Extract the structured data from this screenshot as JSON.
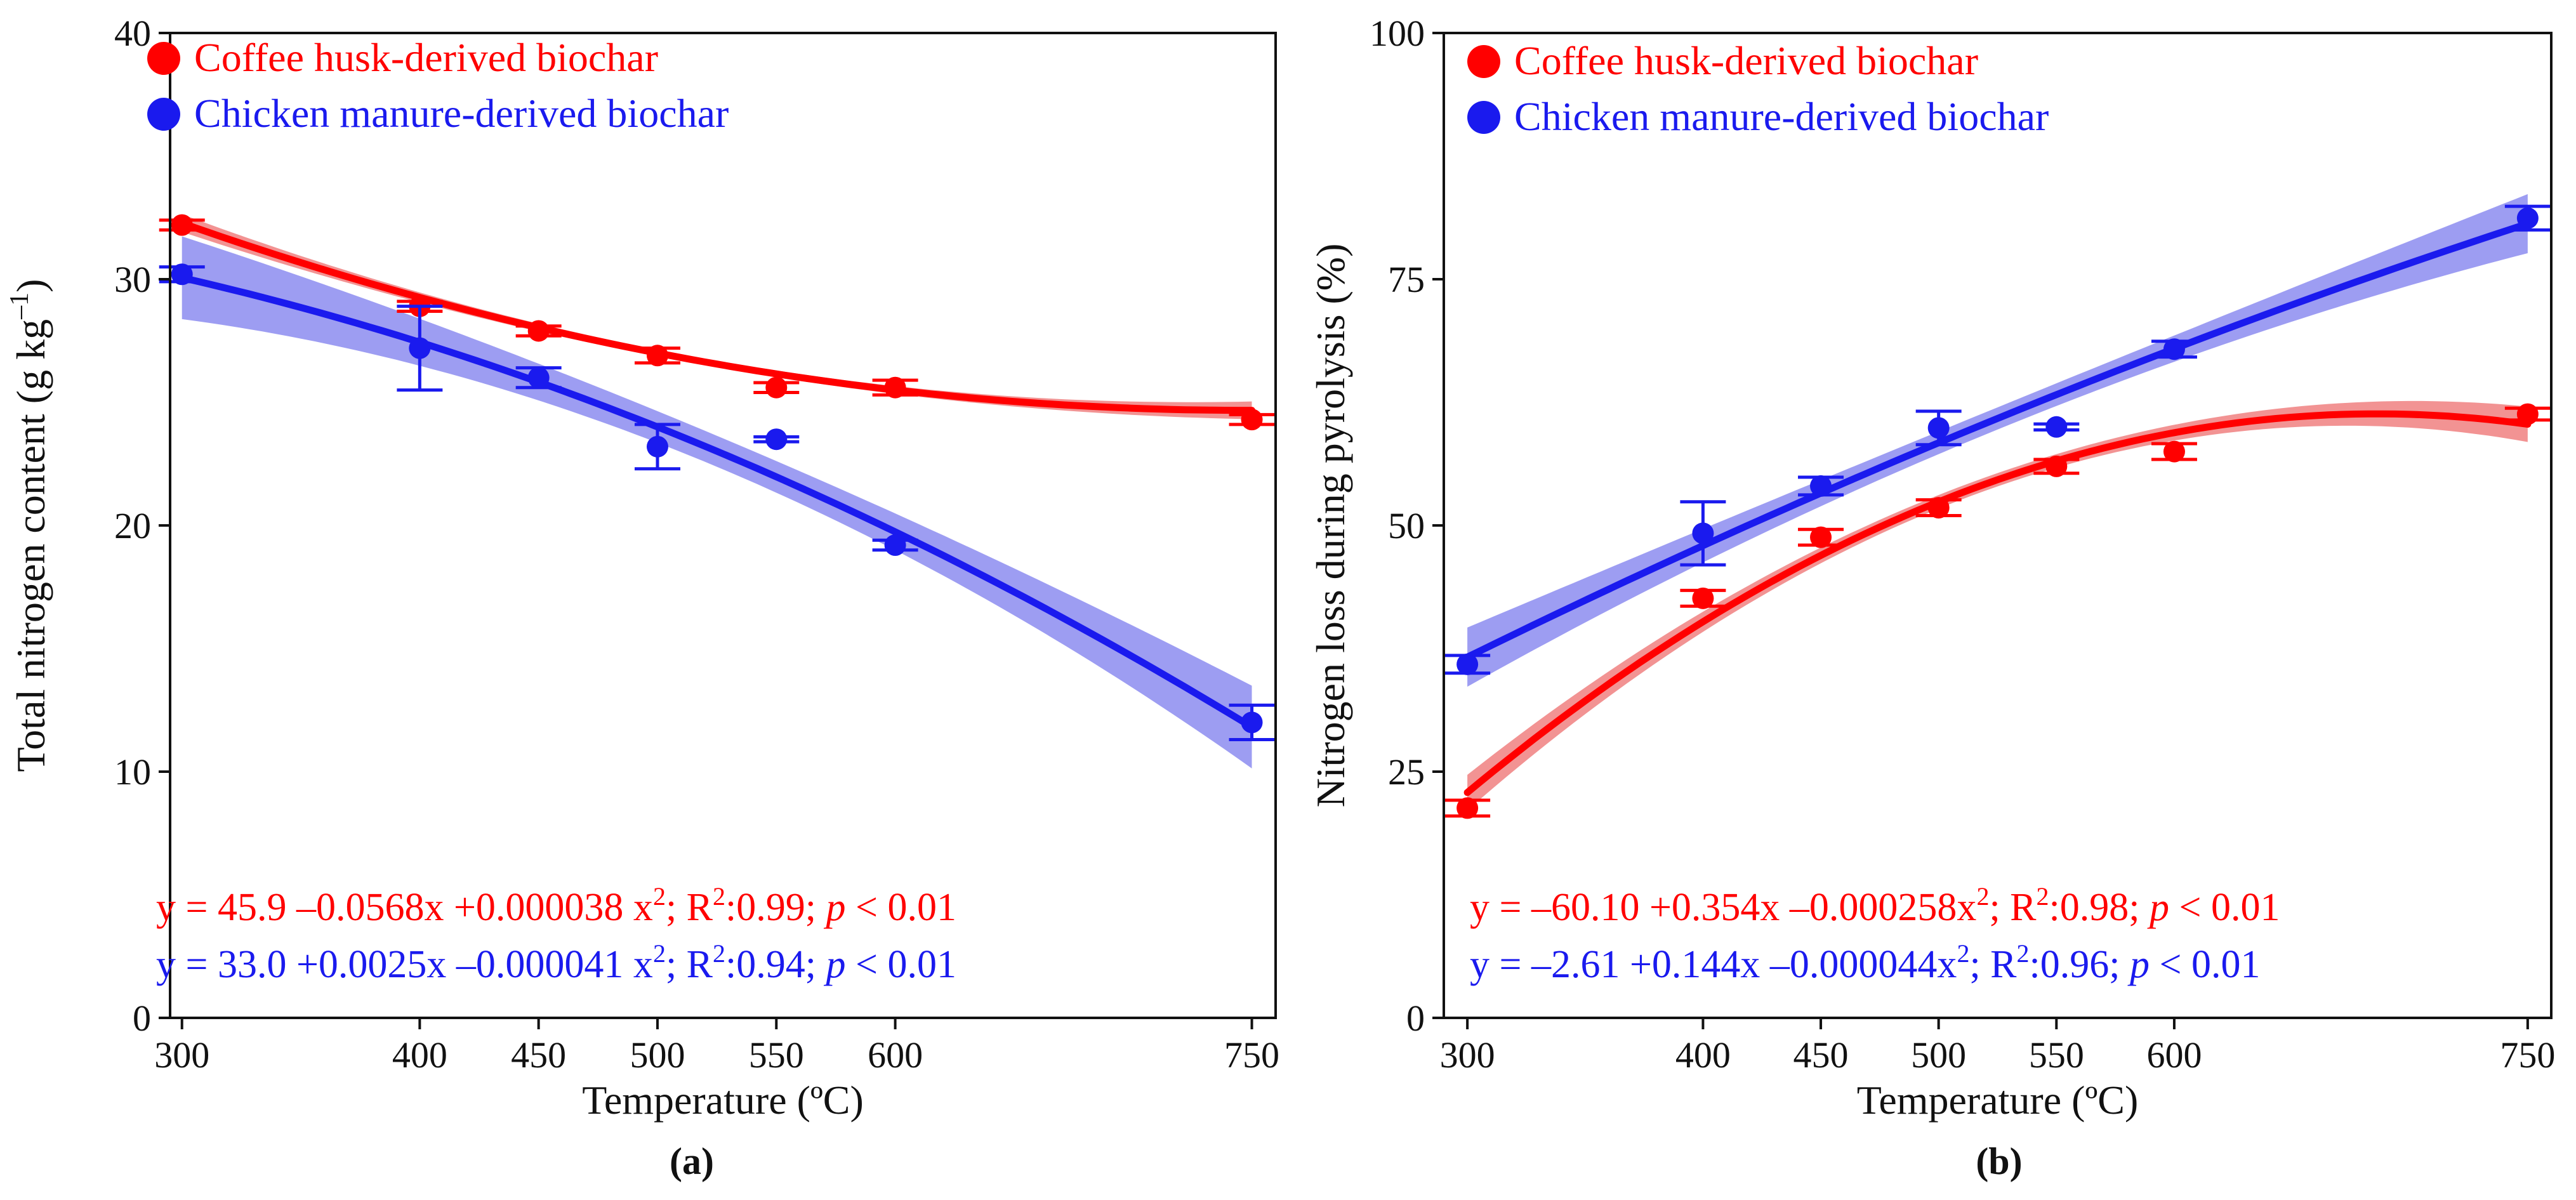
{
  "colors": {
    "coffee": "#ff0000",
    "coffee_band": "#f08080",
    "chicken": "#1a1aee",
    "chicken_band": "#8c8cf0",
    "axis": "#111111"
  },
  "chart_data": [
    {
      "type": "scatter",
      "panel_label": "(a)",
      "title": "",
      "xlabel": "Temperature (ºC)",
      "ylabel_main": "Total nitrogen content (g kg",
      "ylabel_sup": "–1",
      "ylabel_close": ")",
      "xlim": [
        295,
        760
      ],
      "ylim": [
        0,
        40
      ],
      "xticks": [
        300,
        400,
        450,
        500,
        550,
        600,
        750
      ],
      "yticks": [
        0,
        10,
        20,
        30,
        40
      ],
      "legend_position": "top-left",
      "series": [
        {
          "name": "Coffee husk-derived biochar",
          "color_key": "coffee",
          "x": [
            300,
            400,
            450,
            500,
            550,
            600,
            750
          ],
          "y": [
            32.2,
            28.9,
            27.9,
            26.9,
            25.6,
            25.6,
            24.3
          ],
          "err": [
            0.2,
            0.2,
            0.2,
            0.3,
            0.2,
            0.3,
            0.2
          ],
          "fit": {
            "a": 45.9,
            "b": -0.0568,
            "c": 3.8e-05
          },
          "band": 0.3,
          "equation": {
            "lhs": "y = 45.9 –0.0568x +0.000038 x",
            "sup": "2",
            "mid1": "; R",
            "r2": "2",
            "mid2": ":0.99; ",
            "p": "p",
            "tail": " < 0.01"
          }
        },
        {
          "name": "Chicken manure-derived biochar",
          "color_key": "chicken",
          "x": [
            300,
            400,
            450,
            500,
            550,
            600,
            750
          ],
          "y": [
            30.2,
            27.2,
            26.0,
            23.2,
            23.5,
            19.2,
            12.0
          ],
          "err": [
            0.3,
            1.7,
            0.4,
            0.9,
            0.1,
            0.2,
            0.7
          ],
          "fit": {
            "a": 33.0,
            "b": 0.0025,
            "c": -4.1e-05
          },
          "band": 1.4,
          "equation": {
            "lhs": "y = 33.0 +0.0025x –0.000041 x",
            "sup": "2",
            "mid1": "; R",
            "r2": "2",
            "mid2": ":0.94; ",
            "p": "p",
            "tail": " < 0.01"
          }
        }
      ]
    },
    {
      "type": "scatter",
      "panel_label": "(b)",
      "title": "",
      "xlabel": "Temperature (ºC)",
      "ylabel_main": "Nitrogen loss during pyrolysis (%)",
      "ylabel_sup": "",
      "ylabel_close": "",
      "xlim": [
        290,
        760
      ],
      "ylim": [
        0,
        100
      ],
      "xticks": [
        300,
        400,
        450,
        500,
        550,
        600,
        750
      ],
      "yticks": [
        0,
        25,
        50,
        75,
        100
      ],
      "legend_position": "top-left",
      "series": [
        {
          "name": "Coffee husk-derived biochar",
          "color_key": "coffee",
          "x": [
            300,
            400,
            450,
            500,
            550,
            600,
            750
          ],
          "y": [
            21.3,
            42.6,
            48.8,
            51.8,
            56.0,
            57.5,
            61.3
          ],
          "err": [
            0.8,
            0.8,
            0.8,
            0.8,
            0.7,
            0.8,
            0.6
          ],
          "fit": {
            "a": -60.1,
            "b": 0.354,
            "c": -0.000258
          },
          "band": 1.5,
          "equation": {
            "lhs": "y = –60.10 +0.354x –0.000258x",
            "sup": "2",
            "mid1": "; R",
            "r2": "2",
            "mid2": ":0.98; ",
            "p": "p",
            "tail": " < 0.01"
          }
        },
        {
          "name": "Chicken manure-derived biochar",
          "color_key": "chicken",
          "x": [
            300,
            400,
            450,
            500,
            550,
            600,
            750
          ],
          "y": [
            35.9,
            49.2,
            54.0,
            59.9,
            60.0,
            67.9,
            81.2
          ],
          "err": [
            0.9,
            3.2,
            0.9,
            1.7,
            0.3,
            0.8,
            1.2
          ],
          "fit": {
            "a": -2.61,
            "b": 0.144,
            "c": -4.4e-05
          },
          "band": 2.5,
          "equation": {
            "lhs": "y = –2.61 +0.144x –0.000044x",
            "sup": "2",
            "mid1": "; R",
            "r2": "2",
            "mid2": ":0.96; ",
            "p": "p",
            "tail": " < 0.01"
          }
        }
      ]
    }
  ]
}
